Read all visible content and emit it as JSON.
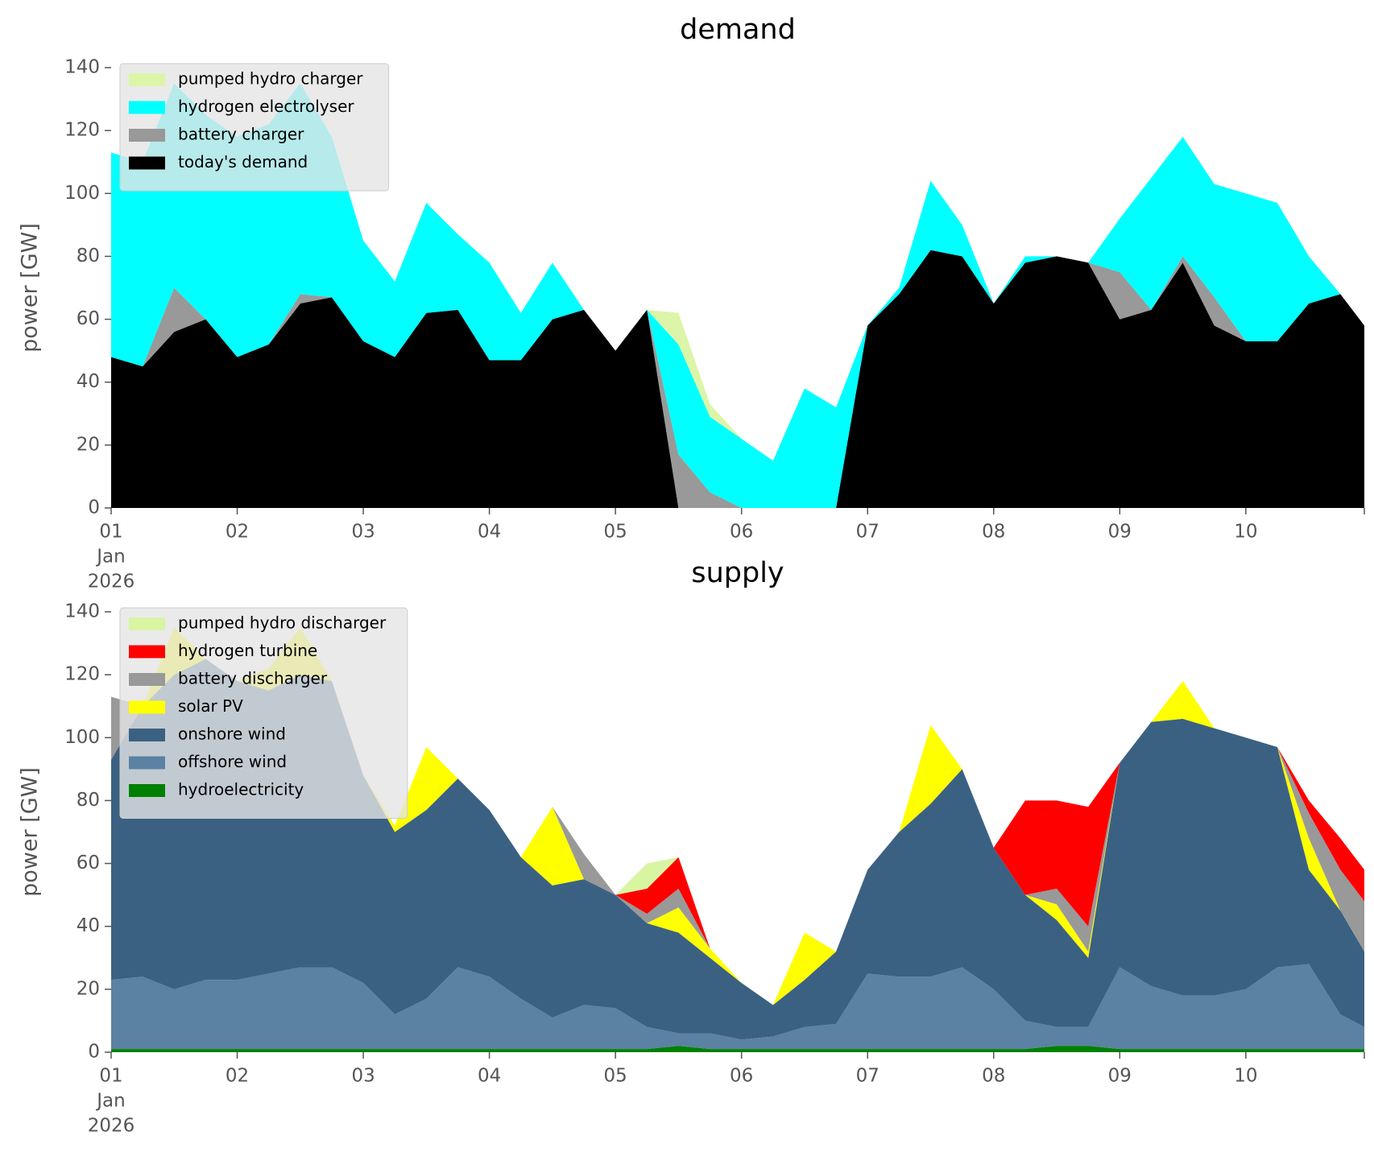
{
  "chart_data": [
    {
      "type": "area",
      "title": "demand",
      "ylabel": "power [GW]",
      "legend": "upper left",
      "x": [
        0,
        0.25,
        0.5,
        0.75,
        1,
        1.25,
        1.5,
        1.75,
        2,
        2.25,
        2.5,
        2.75,
        3,
        3.25,
        3.5,
        3.75,
        4,
        4.25,
        4.5,
        4.75,
        5,
        5.25,
        5.5,
        5.75,
        6,
        6.25,
        6.5,
        6.75,
        7,
        7.25,
        7.5,
        7.75,
        8,
        8.25,
        8.5,
        8.75,
        9,
        9.25,
        9.5,
        9.75,
        9.94
      ],
      "xlim": [
        0,
        9.94
      ],
      "xticks": [
        {
          "value": 0,
          "label": "01",
          "label_lines": [
            "Jan",
            "2026"
          ]
        },
        {
          "value": 1,
          "label": "02"
        },
        {
          "value": 2,
          "label": "03"
        },
        {
          "value": 3,
          "label": "04"
        },
        {
          "value": 4,
          "label": "05"
        },
        {
          "value": 5,
          "label": "06"
        },
        {
          "value": 6,
          "label": "07"
        },
        {
          "value": 7,
          "label": "08"
        },
        {
          "value": 8,
          "label": "09"
        },
        {
          "value": 9,
          "label": "10"
        }
      ],
      "ylim": [
        0,
        140
      ],
      "yticks": [
        0,
        20,
        40,
        60,
        80,
        100,
        120,
        140
      ],
      "series": [
        {
          "name": "today's demand",
          "color": "#000000",
          "values": [
            48,
            45,
            56,
            60,
            48,
            52,
            65,
            67,
            53,
            48,
            62,
            63,
            47,
            47,
            60,
            63,
            50,
            63,
            0,
            0,
            0,
            0,
            0,
            0,
            58,
            68,
            82,
            80,
            65,
            78,
            80,
            78,
            60,
            63,
            78,
            58,
            53,
            53,
            65,
            68,
            58
          ]
        },
        {
          "name": "battery charger",
          "color": "#999999",
          "values": [
            0,
            0,
            14,
            0,
            0,
            0,
            3,
            0,
            0,
            0,
            0,
            0,
            0,
            0,
            0,
            0,
            0,
            0,
            17,
            5,
            0,
            0,
            0,
            0,
            0,
            0,
            0,
            0,
            0,
            0,
            0,
            0,
            15,
            0,
            2,
            9,
            0,
            0,
            0,
            0,
            0
          ]
        },
        {
          "name": "hydrogen electrolyser",
          "color": "#00ffff",
          "values": [
            65,
            65,
            65,
            65,
            70,
            70,
            67,
            51,
            32,
            24,
            35,
            24,
            31,
            15,
            18,
            0,
            0,
            0,
            35,
            24,
            22,
            15,
            38,
            32,
            0,
            2,
            22,
            10,
            0,
            2,
            0,
            0,
            17,
            42,
            38,
            36,
            47,
            44,
            15,
            0,
            0
          ]
        },
        {
          "name": "pumped hydro charger",
          "color": "#dcf5a8",
          "values": [
            0,
            0,
            0,
            0,
            0,
            0,
            0,
            0,
            0,
            0,
            0,
            0,
            0,
            0,
            0,
            0,
            0,
            0,
            10,
            4,
            0,
            0,
            0,
            0,
            0,
            0,
            0,
            0,
            0,
            0,
            0,
            0,
            0,
            0,
            0,
            0,
            0,
            0,
            0,
            0,
            0
          ]
        }
      ]
    },
    {
      "type": "area",
      "title": "supply",
      "ylabel": "power [GW]",
      "legend": "upper left",
      "x": [
        0,
        0.25,
        0.5,
        0.75,
        1,
        1.25,
        1.5,
        1.75,
        2,
        2.25,
        2.5,
        2.75,
        3,
        3.25,
        3.5,
        3.75,
        4,
        4.25,
        4.5,
        4.75,
        5,
        5.25,
        5.5,
        5.75,
        6,
        6.25,
        6.5,
        6.75,
        7,
        7.25,
        7.5,
        7.75,
        8,
        8.25,
        8.5,
        8.75,
        9,
        9.25,
        9.5,
        9.75,
        9.94
      ],
      "xlim": [
        0,
        9.94
      ],
      "xticks": [
        {
          "value": 0,
          "label": "01",
          "label_lines": [
            "Jan",
            "2026"
          ]
        },
        {
          "value": 1,
          "label": "02"
        },
        {
          "value": 2,
          "label": "03"
        },
        {
          "value": 3,
          "label": "04"
        },
        {
          "value": 4,
          "label": "05"
        },
        {
          "value": 5,
          "label": "06"
        },
        {
          "value": 6,
          "label": "07"
        },
        {
          "value": 7,
          "label": "08"
        },
        {
          "value": 8,
          "label": "09"
        },
        {
          "value": 9,
          "label": "10"
        }
      ],
      "ylim": [
        0,
        140
      ],
      "yticks": [
        0,
        20,
        40,
        60,
        80,
        100,
        120,
        140
      ],
      "series": [
        {
          "name": "hydroelectricity",
          "color": "#008000",
          "values": [
            1,
            1,
            1,
            1,
            1,
            1,
            1,
            1,
            1,
            1,
            1,
            1,
            1,
            1,
            1,
            1,
            1,
            1,
            2,
            1,
            1,
            1,
            1,
            1,
            1,
            1,
            1,
            1,
            1,
            1,
            2,
            2,
            1,
            1,
            1,
            1,
            1,
            1,
            1,
            1,
            1
          ]
        },
        {
          "name": "offshore wind",
          "color": "#5b81a3",
          "values": [
            22,
            23,
            19,
            22,
            22,
            24,
            26,
            26,
            21,
            11,
            16,
            26,
            23,
            16,
            10,
            14,
            13,
            7,
            4,
            5,
            3,
            4,
            7,
            8,
            24,
            23,
            23,
            26,
            19,
            9,
            6,
            6,
            26,
            20,
            17,
            17,
            19,
            26,
            27,
            11,
            7
          ]
        },
        {
          "name": "onshore wind",
          "color": "#3b6182",
          "values": [
            70,
            86,
            100,
            102,
            95,
            90,
            93,
            91,
            66,
            58,
            60,
            60,
            53,
            45,
            42,
            40,
            36,
            33,
            32,
            24,
            18,
            10,
            15,
            23,
            33,
            46,
            55,
            63,
            45,
            40,
            34,
            22,
            65,
            84,
            88,
            85,
            80,
            70,
            30,
            33,
            24
          ]
        },
        {
          "name": "solar PV",
          "color": "#ffff00",
          "values": [
            0,
            0,
            15,
            0,
            0,
            7,
            15,
            0,
            0,
            2,
            20,
            0,
            0,
            0,
            25,
            0,
            0,
            0,
            8,
            3,
            0,
            0,
            15,
            0,
            0,
            0,
            25,
            0,
            0,
            0,
            5,
            2,
            0,
            0,
            12,
            0,
            0,
            0,
            10,
            0,
            0
          ]
        },
        {
          "name": "battery discharger",
          "color": "#999999",
          "values": [
            20,
            0,
            0,
            0,
            0,
            0,
            0,
            0,
            0,
            0,
            0,
            0,
            0,
            0,
            0,
            8,
            0,
            3,
            6,
            0,
            0,
            0,
            0,
            0,
            0,
            0,
            0,
            0,
            0,
            0,
            5,
            8,
            0,
            0,
            0,
            0,
            0,
            0,
            8,
            13,
            16
          ]
        },
        {
          "name": "hydrogen turbine",
          "color": "#ff0000",
          "values": [
            0,
            0,
            0,
            0,
            0,
            0,
            0,
            0,
            0,
            0,
            0,
            0,
            0,
            0,
            0,
            0,
            0,
            8,
            10,
            0,
            0,
            0,
            0,
            0,
            0,
            0,
            0,
            0,
            0,
            30,
            28,
            38,
            0,
            0,
            0,
            0,
            0,
            0,
            4,
            10,
            10
          ]
        },
        {
          "name": "pumped hydro discharger",
          "color": "#d8f5a2",
          "values": [
            0,
            0,
            0,
            0,
            0,
            0,
            0,
            0,
            0,
            0,
            0,
            0,
            0,
            0,
            0,
            0,
            0,
            8,
            0,
            0,
            0,
            0,
            0,
            0,
            0,
            0,
            0,
            0,
            0,
            0,
            0,
            0,
            0,
            0,
            0,
            0,
            0,
            0,
            0,
            0,
            0
          ]
        }
      ]
    }
  ]
}
